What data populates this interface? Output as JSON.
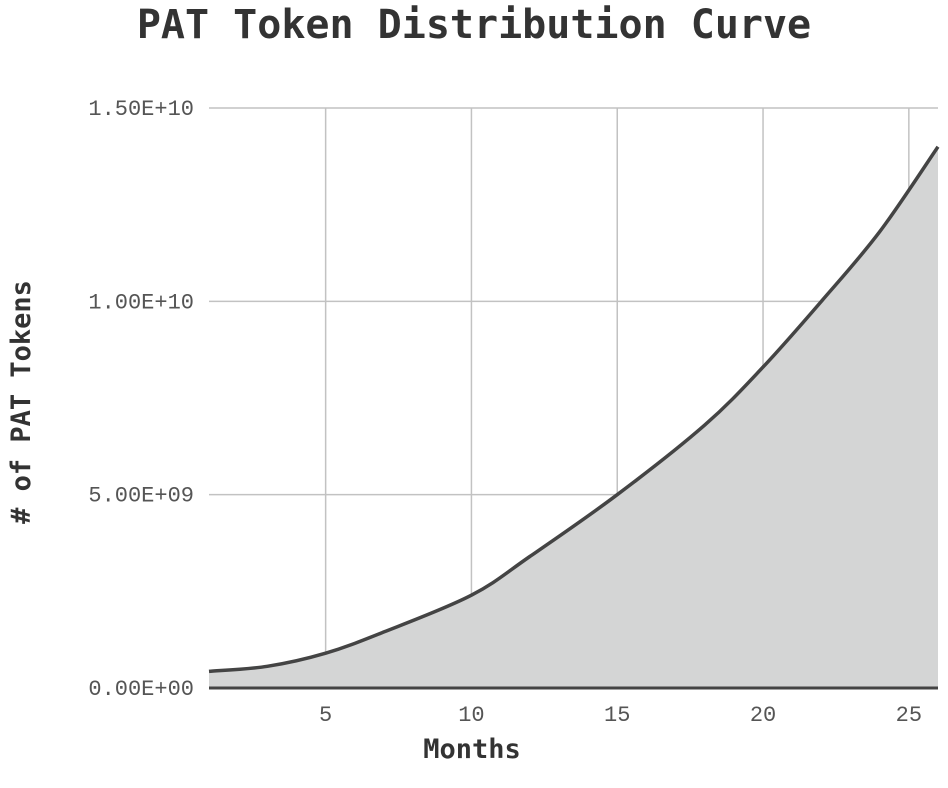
{
  "chart_data": {
    "type": "area",
    "title": "PAT Token Distribution Curve",
    "xlabel": "Months",
    "ylabel": "# of PAT Tokens",
    "xlim": [
      1,
      26
    ],
    "ylim": [
      0,
      15000000000
    ],
    "x_ticks": [
      5,
      10,
      15,
      20,
      25
    ],
    "x_tick_labels": [
      "5",
      "10",
      "15",
      "20",
      "25"
    ],
    "y_ticks": [
      0,
      5000000000,
      10000000000,
      15000000000
    ],
    "y_tick_labels": [
      "0.00E+00",
      "5.00E+09",
      "1.00E+10",
      "1.50E+10"
    ],
    "grid": true,
    "legend": "none",
    "series": [
      {
        "x": [
          1,
          3,
          5,
          7,
          10,
          12,
          15,
          18,
          20,
          22,
          24,
          26
        ],
        "values": [
          430000000,
          560000000,
          900000000,
          1450000000,
          2400000000,
          3400000000,
          5000000000,
          6800000000,
          8300000000,
          10000000000,
          11800000000,
          14000000000
        ],
        "fill": "#d4d5d5",
        "line_color": "#444444"
      }
    ]
  }
}
